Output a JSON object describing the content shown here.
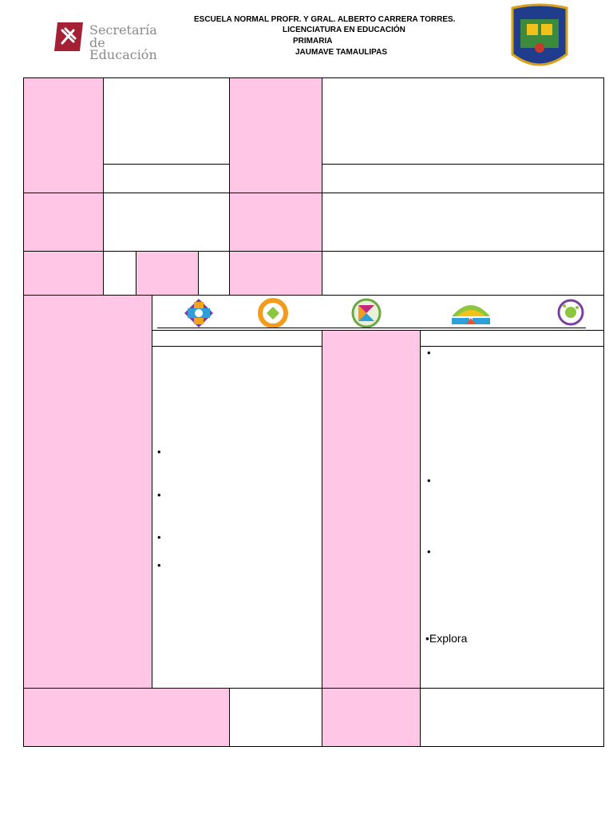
{
  "header": {
    "line1": "ESCUELA NORMAL PROFR. Y GRAL.  ALBERTO CARRERA TORRES.",
    "line2": "LICENCIATURA EN EDUCACIÓN",
    "line3": "PRIMARIA",
    "line4": "JAUMAVE TAMAULIPAS"
  },
  "left_logo": {
    "line1": "Secretaría",
    "line2": "de Educación",
    "icon": "pencil-ruler-icon",
    "color": "#a32035"
  },
  "right_logo": {
    "icon": "school-crest-icon"
  },
  "icons_row": [
    {
      "icon": "cross-diamond-icon"
    },
    {
      "icon": "orange-ring-icon"
    },
    {
      "icon": "hourglass-circle-icon"
    },
    {
      "icon": "rainbow-arc-icon"
    },
    {
      "icon": "splash-circle-icon"
    }
  ],
  "left_bullets": [
    "•",
    "•",
    "•",
    "•"
  ],
  "right_bullets": [
    "•",
    "•",
    "•"
  ],
  "explora": "•Explora",
  "colors": {
    "pink": "#ffc6e6",
    "border": "#000000"
  }
}
